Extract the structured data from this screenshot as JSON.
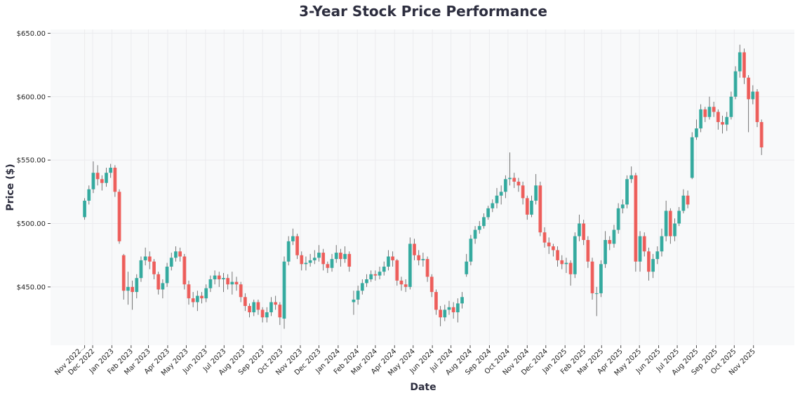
{
  "chart_data": {
    "type": "candlestick",
    "title": "3-Year Stock Price Performance",
    "xlabel": "Date",
    "ylabel": "Price ($)",
    "ylim": [
      404,
      653
    ],
    "xlim": [
      "2022-09-24",
      "2026-01-06"
    ],
    "grid": true,
    "legend": "none",
    "colors": {
      "up": "#26a69a",
      "down": "#ef5350",
      "wick": "#666666",
      "plot_background": "#f8f9fa",
      "grid": "#ebebee",
      "title": "#2d2e3f"
    },
    "y_ticks": [
      {
        "value": 450,
        "label": "$450.00"
      },
      {
        "value": 500,
        "label": "$500.00"
      },
      {
        "value": 550,
        "label": "$550.00"
      },
      {
        "value": 600,
        "label": "$600.00"
      },
      {
        "value": 650,
        "label": "$650.00"
      }
    ],
    "x_ticks": [
      {
        "date": "2022-11-18",
        "label": "Nov 2022"
      },
      {
        "date": "2022-12-01",
        "label": "Dec 2022"
      },
      {
        "date": "2023-01-01",
        "label": "Jan 2023"
      },
      {
        "date": "2023-02-01",
        "label": "Feb 2023"
      },
      {
        "date": "2023-03-01",
        "label": "Mar 2023"
      },
      {
        "date": "2023-04-01",
        "label": "Apr 2023"
      },
      {
        "date": "2023-05-01",
        "label": "May 2023"
      },
      {
        "date": "2023-06-01",
        "label": "Jun 2023"
      },
      {
        "date": "2023-07-01",
        "label": "Jul 2023"
      },
      {
        "date": "2023-08-01",
        "label": "Aug 2023"
      },
      {
        "date": "2023-09-01",
        "label": "Sep 2023"
      },
      {
        "date": "2023-10-01",
        "label": "Oct 2023"
      },
      {
        "date": "2023-11-01",
        "label": "Nov 2023"
      },
      {
        "date": "2023-12-01",
        "label": "Dec 2023"
      },
      {
        "date": "2024-01-01",
        "label": "Jan 2024"
      },
      {
        "date": "2024-02-01",
        "label": "Feb 2024"
      },
      {
        "date": "2024-03-01",
        "label": "Mar 2024"
      },
      {
        "date": "2024-04-01",
        "label": "Apr 2024"
      },
      {
        "date": "2024-05-01",
        "label": "May 2024"
      },
      {
        "date": "2024-06-01",
        "label": "Jun 2024"
      },
      {
        "date": "2024-07-01",
        "label": "Jul 2024"
      },
      {
        "date": "2024-08-01",
        "label": "Aug 2024"
      },
      {
        "date": "2024-09-01",
        "label": "Sep 2024"
      },
      {
        "date": "2024-10-01",
        "label": "Oct 2024"
      },
      {
        "date": "2024-11-01",
        "label": "Nov 2024"
      },
      {
        "date": "2024-12-01",
        "label": "Dec 2024"
      },
      {
        "date": "2025-01-01",
        "label": "Jan 2025"
      },
      {
        "date": "2025-02-01",
        "label": "Feb 2025"
      },
      {
        "date": "2025-03-01",
        "label": "Mar 2025"
      },
      {
        "date": "2025-04-01",
        "label": "Apr 2025"
      },
      {
        "date": "2025-05-01",
        "label": "May 2025"
      },
      {
        "date": "2025-06-01",
        "label": "Jun 2025"
      },
      {
        "date": "2025-07-01",
        "label": "Jul 2025"
      },
      {
        "date": "2025-08-01",
        "label": "Aug 2025"
      },
      {
        "date": "2025-09-01",
        "label": "Sep 2025"
      },
      {
        "date": "2025-10-01",
        "label": "Oct 2025"
      },
      {
        "date": "2025-11-01",
        "label": "Nov 2025"
      }
    ],
    "candles_fields": [
      "date",
      "open",
      "high",
      "low",
      "close"
    ],
    "candles": [
      [
        "2022-11-18",
        505,
        520,
        503,
        518
      ],
      [
        "2022-11-25",
        518,
        530,
        515,
        527
      ],
      [
        "2022-12-02",
        527,
        549,
        524,
        540
      ],
      [
        "2022-12-09",
        540,
        546,
        530,
        535
      ],
      [
        "2022-12-16",
        535,
        538,
        526,
        532
      ],
      [
        "2022-12-23",
        532,
        544,
        529,
        540
      ],
      [
        "2022-12-30",
        540,
        547,
        536,
        544
      ],
      [
        "2023-01-06",
        544,
        546,
        521,
        525
      ],
      [
        "2023-01-13",
        525,
        527,
        484,
        486
      ],
      [
        "2023-01-20",
        475,
        476,
        440,
        447
      ],
      [
        "2023-01-27",
        447,
        462,
        436,
        450
      ],
      [
        "2023-02-03",
        450,
        455,
        432,
        446
      ],
      [
        "2023-02-10",
        446,
        460,
        441,
        457
      ],
      [
        "2023-02-17",
        457,
        474,
        454,
        471
      ],
      [
        "2023-02-24",
        471,
        481,
        467,
        474
      ],
      [
        "2023-03-03",
        474,
        478,
        464,
        470
      ],
      [
        "2023-03-10",
        470,
        472,
        456,
        460
      ],
      [
        "2023-03-17",
        460,
        462,
        444,
        448
      ],
      [
        "2023-03-24",
        448,
        456,
        441,
        453
      ],
      [
        "2023-03-31",
        453,
        469,
        450,
        466
      ],
      [
        "2023-04-07",
        466,
        477,
        463,
        473
      ],
      [
        "2023-04-14",
        473,
        482,
        470,
        478
      ],
      [
        "2023-04-21",
        478,
        481,
        470,
        474
      ],
      [
        "2023-04-28",
        474,
        476,
        448,
        452
      ],
      [
        "2023-05-05",
        452,
        455,
        436,
        441
      ],
      [
        "2023-05-12",
        441,
        446,
        434,
        438
      ],
      [
        "2023-05-19",
        438,
        447,
        431,
        443
      ],
      [
        "2023-05-26",
        443,
        446,
        437,
        441
      ],
      [
        "2023-06-02",
        441,
        452,
        438,
        449
      ],
      [
        "2023-06-09",
        449,
        459,
        446,
        456
      ],
      [
        "2023-06-16",
        456,
        463,
        452,
        459
      ],
      [
        "2023-06-23",
        459,
        462,
        450,
        456
      ],
      [
        "2023-06-30",
        456,
        461,
        446,
        457
      ],
      [
        "2023-07-07",
        457,
        460,
        448,
        452
      ],
      [
        "2023-07-14",
        452,
        462,
        444,
        454
      ],
      [
        "2023-07-21",
        454,
        458,
        447,
        452
      ],
      [
        "2023-07-28",
        452,
        454,
        438,
        442
      ],
      [
        "2023-08-04",
        442,
        445,
        431,
        435
      ],
      [
        "2023-08-11",
        435,
        437,
        426,
        430
      ],
      [
        "2023-08-18",
        430,
        440,
        427,
        438
      ],
      [
        "2023-08-25",
        438,
        440,
        428,
        432
      ],
      [
        "2023-09-01",
        432,
        434,
        422,
        426
      ],
      [
        "2023-09-08",
        426,
        434,
        422,
        430
      ],
      [
        "2023-09-15",
        430,
        442,
        427,
        438
      ],
      [
        "2023-09-22",
        438,
        443,
        432,
        436
      ],
      [
        "2023-09-29",
        436,
        438,
        420,
        426
      ],
      [
        "2023-10-06",
        425,
        474,
        417,
        470
      ],
      [
        "2023-10-13",
        470,
        490,
        467,
        486
      ],
      [
        "2023-10-20",
        486,
        496,
        483,
        490
      ],
      [
        "2023-10-27",
        490,
        492,
        472,
        475
      ],
      [
        "2023-11-03",
        475,
        478,
        463,
        468
      ],
      [
        "2023-11-10",
        468,
        474,
        463,
        469
      ],
      [
        "2023-11-17",
        469,
        476,
        466,
        471
      ],
      [
        "2023-11-24",
        471,
        479,
        468,
        473
      ],
      [
        "2023-12-01",
        473,
        483,
        470,
        477
      ],
      [
        "2023-12-08",
        477,
        480,
        463,
        468
      ],
      [
        "2023-12-15",
        468,
        470,
        461,
        465
      ],
      [
        "2023-12-22",
        465,
        476,
        462,
        472
      ],
      [
        "2023-12-29",
        472,
        483,
        469,
        477
      ],
      [
        "2024-01-05",
        477,
        480,
        466,
        472
      ],
      [
        "2024-01-12",
        472,
        482,
        469,
        476
      ],
      [
        "2024-01-19",
        476,
        478,
        462,
        466
      ],
      [
        "2024-01-26",
        438,
        447,
        428,
        440
      ],
      [
        "2024-02-02",
        440,
        451,
        436,
        447
      ],
      [
        "2024-02-09",
        447,
        456,
        444,
        453
      ],
      [
        "2024-02-16",
        453,
        460,
        450,
        456
      ],
      [
        "2024-02-23",
        456,
        463,
        454,
        460
      ],
      [
        "2024-03-01",
        460,
        463,
        455,
        459
      ],
      [
        "2024-03-08",
        459,
        466,
        456,
        462
      ],
      [
        "2024-03-15",
        462,
        470,
        459,
        466
      ],
      [
        "2024-03-22",
        466,
        479,
        463,
        474
      ],
      [
        "2024-03-29",
        474,
        478,
        466,
        471
      ],
      [
        "2024-04-05",
        471,
        472,
        451,
        455
      ],
      [
        "2024-04-12",
        455,
        458,
        447,
        452
      ],
      [
        "2024-04-19",
        452,
        456,
        446,
        450
      ],
      [
        "2024-04-26",
        450,
        489,
        448,
        484
      ],
      [
        "2024-05-03",
        484,
        488,
        471,
        475
      ],
      [
        "2024-05-10",
        475,
        479,
        467,
        471
      ],
      [
        "2024-05-17",
        471,
        477,
        466,
        472
      ],
      [
        "2024-05-24",
        472,
        474,
        454,
        458
      ],
      [
        "2024-05-31",
        458,
        460,
        442,
        446
      ],
      [
        "2024-06-07",
        446,
        448,
        428,
        432
      ],
      [
        "2024-06-14",
        432,
        435,
        419,
        426
      ],
      [
        "2024-06-21",
        426,
        436,
        423,
        432
      ],
      [
        "2024-06-28",
        432,
        439,
        428,
        434
      ],
      [
        "2024-07-05",
        434,
        438,
        425,
        430
      ],
      [
        "2024-07-12",
        430,
        441,
        422,
        437
      ],
      [
        "2024-07-19",
        437,
        446,
        433,
        442
      ],
      [
        "2024-07-26",
        460,
        476,
        458,
        470
      ],
      [
        "2024-08-02",
        470,
        491,
        467,
        488
      ],
      [
        "2024-08-09",
        488,
        498,
        484,
        495
      ],
      [
        "2024-08-16",
        495,
        502,
        492,
        498
      ],
      [
        "2024-08-23",
        498,
        508,
        496,
        505
      ],
      [
        "2024-08-30",
        505,
        514,
        503,
        512
      ],
      [
        "2024-09-06",
        512,
        519,
        509,
        516
      ],
      [
        "2024-09-13",
        516,
        528,
        512,
        522
      ],
      [
        "2024-09-20",
        522,
        530,
        515,
        525
      ],
      [
        "2024-09-27",
        525,
        538,
        520,
        535
      ],
      [
        "2024-10-04",
        535,
        556,
        530,
        536
      ],
      [
        "2024-10-11",
        536,
        540,
        528,
        533
      ],
      [
        "2024-10-18",
        533,
        536,
        525,
        530
      ],
      [
        "2024-10-25",
        530,
        533,
        515,
        520
      ],
      [
        "2024-11-01",
        520,
        522,
        503,
        507
      ],
      [
        "2024-11-08",
        507,
        522,
        505,
        518
      ],
      [
        "2024-11-15",
        518,
        539,
        515,
        530
      ],
      [
        "2024-11-22",
        530,
        533,
        490,
        493
      ],
      [
        "2024-11-29",
        493,
        497,
        481,
        485
      ],
      [
        "2024-12-06",
        485,
        489,
        476,
        482
      ],
      [
        "2024-12-13",
        482,
        484,
        474,
        479
      ],
      [
        "2024-12-20",
        479,
        482,
        466,
        471
      ],
      [
        "2024-12-27",
        471,
        475,
        464,
        468
      ],
      [
        "2025-01-03",
        468,
        473,
        461,
        469
      ],
      [
        "2025-01-10",
        469,
        471,
        451,
        460
      ],
      [
        "2025-01-17",
        460,
        493,
        457,
        490
      ],
      [
        "2025-01-24",
        490,
        507,
        486,
        500
      ],
      [
        "2025-01-31",
        500,
        503,
        483,
        487
      ],
      [
        "2025-02-07",
        487,
        490,
        465,
        470
      ],
      [
        "2025-02-14",
        470,
        473,
        440,
        445
      ],
      [
        "2025-02-21",
        445,
        450,
        427,
        445
      ],
      [
        "2025-02-28",
        445,
        471,
        442,
        468
      ],
      [
        "2025-03-07",
        468,
        494,
        465,
        487
      ],
      [
        "2025-03-14",
        487,
        490,
        479,
        484
      ],
      [
        "2025-03-21",
        484,
        499,
        481,
        495
      ],
      [
        "2025-03-28",
        495,
        516,
        492,
        512
      ],
      [
        "2025-04-04",
        512,
        519,
        508,
        515
      ],
      [
        "2025-04-11",
        515,
        538,
        512,
        535
      ],
      [
        "2025-04-18",
        535,
        545,
        532,
        538
      ],
      [
        "2025-04-25",
        538,
        540,
        462,
        470
      ],
      [
        "2025-05-02",
        470,
        494,
        462,
        490
      ],
      [
        "2025-05-09",
        490,
        493,
        474,
        478
      ],
      [
        "2025-05-16",
        478,
        481,
        455,
        462
      ],
      [
        "2025-05-23",
        462,
        476,
        457,
        472
      ],
      [
        "2025-05-30",
        472,
        482,
        468,
        478
      ],
      [
        "2025-06-06",
        478,
        496,
        474,
        490
      ],
      [
        "2025-06-13",
        490,
        518,
        486,
        510
      ],
      [
        "2025-06-20",
        510,
        512,
        484,
        490
      ],
      [
        "2025-06-27",
        490,
        504,
        486,
        500
      ],
      [
        "2025-07-04",
        500,
        513,
        498,
        510
      ],
      [
        "2025-07-11",
        510,
        527,
        508,
        522
      ],
      [
        "2025-07-18",
        522,
        526,
        512,
        515
      ],
      [
        "2025-07-25",
        536,
        572,
        535,
        568
      ],
      [
        "2025-08-01",
        568,
        582,
        566,
        575
      ],
      [
        "2025-08-08",
        575,
        594,
        572,
        590
      ],
      [
        "2025-08-15",
        590,
        592,
        580,
        584
      ],
      [
        "2025-08-22",
        584,
        600,
        582,
        592
      ],
      [
        "2025-08-29",
        592,
        596,
        584,
        588
      ],
      [
        "2025-09-05",
        588,
        590,
        574,
        580
      ],
      [
        "2025-09-12",
        580,
        585,
        571,
        578
      ],
      [
        "2025-09-19",
        578,
        588,
        573,
        584
      ],
      [
        "2025-09-26",
        584,
        604,
        582,
        600
      ],
      [
        "2025-10-03",
        600,
        624,
        598,
        620
      ],
      [
        "2025-10-10",
        620,
        641,
        615,
        635
      ],
      [
        "2025-10-17",
        635,
        638,
        610,
        615
      ],
      [
        "2025-10-24",
        615,
        617,
        572,
        598
      ],
      [
        "2025-10-31",
        598,
        609,
        594,
        604
      ],
      [
        "2025-11-07",
        604,
        606,
        576,
        580
      ],
      [
        "2025-11-14",
        580,
        582,
        554,
        560
      ]
    ]
  }
}
